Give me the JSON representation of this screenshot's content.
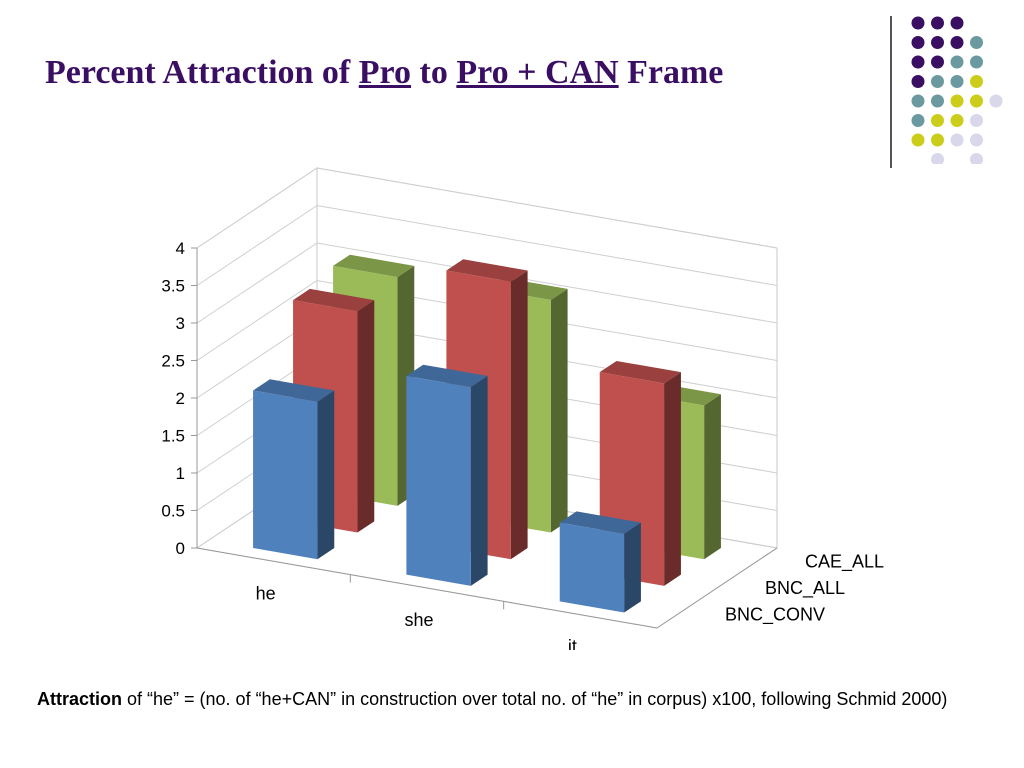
{
  "slide": {
    "title_part1": "Percent Attraction of",
    "title_pro": "Pro",
    "title_to": "to",
    "title_frame_u": "Pro + CAN",
    "title_frame": "Frame",
    "caption_bold": "Attraction",
    "caption_rest": " of “he” = (no. of “he+CAN” in construction over total no. of “he” in corpus) x100, following Schmid 2000)"
  },
  "colors": {
    "title": "#3a0f63",
    "dot_purple": "#3a0f63",
    "dot_teal": "#6a9aa0",
    "dot_yellow": "#cccc1a",
    "dot_lavender": "#d8d8ea"
  },
  "chart_data": {
    "type": "bar",
    "projection": "3d",
    "categories": [
      "he",
      "she",
      "it"
    ],
    "series": [
      {
        "name": "BNC_CONV",
        "values": [
          2.1,
          2.65,
          1.05
        ],
        "color": "#4f81bd"
      },
      {
        "name": "BNC_ALL",
        "values": [
          2.95,
          3.7,
          2.7
        ],
        "color": "#c0504d"
      },
      {
        "name": "CAE_ALL",
        "values": [
          3.05,
          3.1,
          2.05
        ],
        "color": "#9bbb59"
      }
    ],
    "ylim": [
      0,
      4
    ],
    "yticks": [
      "0",
      "0.5",
      "1",
      "1.5",
      "2",
      "2.5",
      "3",
      "3.5",
      "4"
    ],
    "grid": true,
    "legend": "depth-axis labels at right"
  }
}
